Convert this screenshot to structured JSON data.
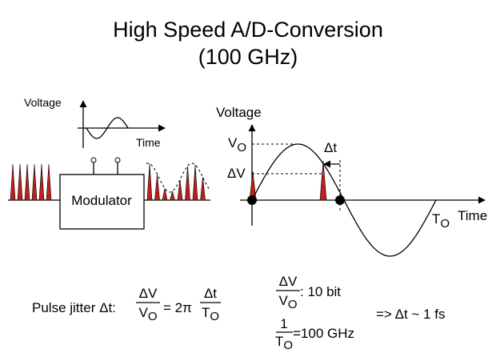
{
  "title": [
    "High Speed A/D-Conversion",
    "(100 GHz)"
  ],
  "inset": {
    "y_label": "Voltage",
    "x_label": "Time"
  },
  "modulator": {
    "label": "Modulator"
  },
  "plot": {
    "y_label": "Voltage",
    "peak": {
      "base": "V",
      "sub": "O"
    },
    "delta_v": "ΔV",
    "delta_t": "Δt",
    "period": {
      "base": "T",
      "sub": "O"
    },
    "x_label": "Time"
  },
  "equations": {
    "jitter_label": "Pulse jitter Δt:",
    "lhs_num": "ΔV",
    "lhs_den": {
      "base": "V",
      "sub": "O"
    },
    "equals": "= 2π",
    "rhs_num": "Δt",
    "rhs_den": {
      "base": "T",
      "sub": "O"
    }
  },
  "specs": {
    "resolution_num": "ΔV",
    "resolution_den": {
      "base": "V",
      "sub": "O"
    },
    "resolution": ": 10 bit",
    "rate_num": "1",
    "rate_den": {
      "base": "T",
      "sub": "O"
    },
    "rate": "=100 GHz",
    "result": "=> Δt ~ 1 fs"
  }
}
